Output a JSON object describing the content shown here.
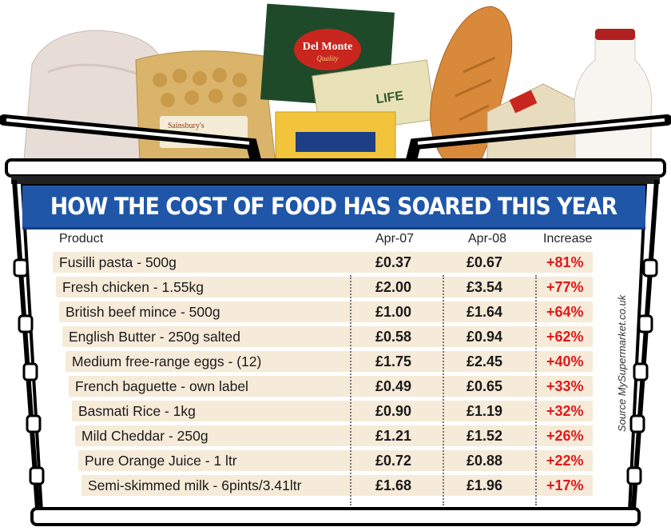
{
  "chart_data": {
    "type": "table",
    "title": "HOW THE COST OF FOOD HAS SOARED THIS YEAR",
    "columns": [
      "Product",
      "Apr-07",
      "Apr-08",
      "Increase"
    ],
    "rows": [
      {
        "product": "Fusilli pasta - 500g",
        "apr07": "£0.37",
        "apr08": "£0.67",
        "increase": "+81%"
      },
      {
        "product": "Fresh chicken - 1.55kg",
        "apr07": "£2.00",
        "apr08": "£3.54",
        "increase": "+77%"
      },
      {
        "product": "British beef mince - 500g",
        "apr07": "£1.00",
        "apr08": "£1.64",
        "increase": "+64%"
      },
      {
        "product": "English Butter - 250g salted",
        "apr07": "£0.58",
        "apr08": "£0.94",
        "increase": "+62%"
      },
      {
        "product": "Medium free-range eggs - (12)",
        "apr07": "£1.75",
        "apr08": "£2.45",
        "increase": "+40%"
      },
      {
        "product": "French baguette - own label",
        "apr07": "£0.49",
        "apr08": "£0.65",
        "increase": "+33%"
      },
      {
        "product": "Basmati Rice - 1kg",
        "apr07": "£0.90",
        "apr08": "£1.19",
        "increase": "+32%"
      },
      {
        "product": "Mild Cheddar - 250g",
        "apr07": "£1.21",
        "apr08": "£1.52",
        "increase": "+26%"
      },
      {
        "product": "Pure Orange Juice - 1 ltr",
        "apr07": "£0.72",
        "apr08": "£0.88",
        "increase": "+22%"
      },
      {
        "product": "Semi-skimmed milk - 6pints/3.41ltr",
        "apr07": "£1.68",
        "apr08": "£1.96",
        "increase": "+17%"
      }
    ],
    "source": "Source MySupermarket.co.uk"
  },
  "photo_labels": {
    "delmonte": "Del Monte",
    "delmonte_sub": "Quality",
    "sainsburys": "Sainsbury's",
    "butter_fragment": "LIFE"
  },
  "colors": {
    "title_bar": "#1f56a8",
    "row_bg": "#f6ead8",
    "increase_text": "#e0191b",
    "basket_frame": "#000000"
  }
}
